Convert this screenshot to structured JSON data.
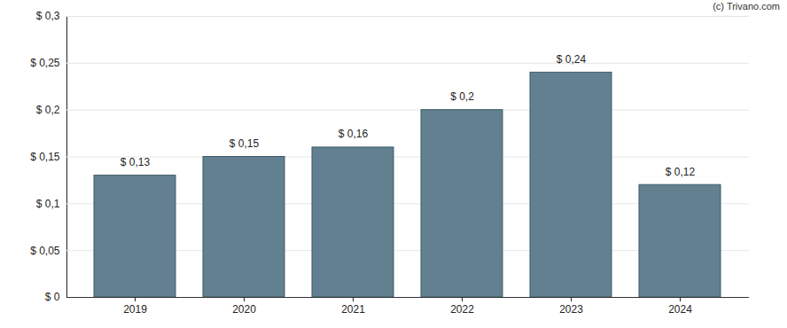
{
  "chart_data": {
    "type": "bar",
    "annotations": [
      "(c) Trivano.com"
    ],
    "categories": [
      "2019",
      "2020",
      "2021",
      "2022",
      "2023",
      "2024"
    ],
    "values": [
      0.13,
      0.15,
      0.16,
      0.2,
      0.24,
      0.12
    ],
    "value_labels": [
      "$ 0,13",
      "$ 0,15",
      "$ 0,16",
      "$ 0,2",
      "$ 0,24",
      "$ 0,12"
    ],
    "data_labels": true,
    "color": "#62808f",
    "ylim": [
      0,
      0.3
    ],
    "yticks": [
      {
        "value": 0,
        "label": "$ 0"
      },
      {
        "value": 0.05,
        "label": "$ 0,05"
      },
      {
        "value": 0.1,
        "label": "$ 0,1"
      },
      {
        "value": 0.15,
        "label": "$ 0,15"
      },
      {
        "value": 0.2,
        "label": "$ 0,2"
      },
      {
        "value": 0.25,
        "label": "$ 0,25"
      },
      {
        "value": 0.3,
        "label": "$ 0,3"
      }
    ],
    "grid": true
  }
}
